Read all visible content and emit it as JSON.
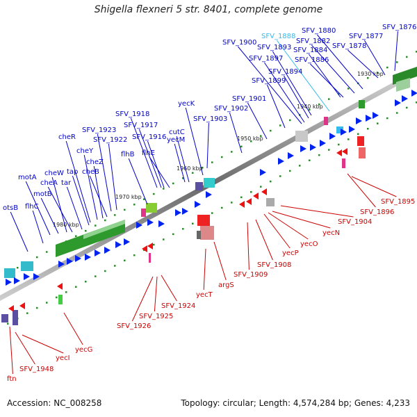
{
  "title": "Shigella flexneri 5 str. 8401, complete genome",
  "footer": {
    "accession": "Accession: NC_008258",
    "summary": "Topology: circular; Length: 4,574,284 bp; Genes: 4,233"
  },
  "colors": {
    "forward_label": "#0000cc",
    "reverse_label": "#cc0000",
    "highlight_label": "#33bbee",
    "backbone": "#888888"
  },
  "ticks": [
    "1930 kbp",
    "1940 kbp",
    "1950 kbp",
    "1960 kbp",
    "1970 kbp",
    "1980 kbp"
  ],
  "forward_genes": [
    "otsB",
    "flhC",
    "motA",
    "motB",
    "cheW",
    "cheA",
    "tar",
    "cheR",
    "tap",
    "cheY",
    "cheZ",
    "cheB",
    "SFV_1923",
    "SFV_1922",
    "SFV_1918",
    "SFV_1917",
    "flhB",
    "SFV_1916",
    "flhE",
    "cutC",
    "yecM",
    "yecK",
    "SFV_1903",
    "SFV_1902",
    "SFV_1901",
    "SFV_1899",
    "SFV_1900",
    "SFV_1897",
    "SFV_1894",
    "SFV_1893",
    "SFV_1888",
    "SFV_1884",
    "SFV_1886",
    "SFV_1882",
    "SFV_1880",
    "SFV_1878",
    "SFV_1877",
    "SFV_1876"
  ],
  "reverse_genes": [
    "ftn",
    "SFV_1948",
    "yecI",
    "yecG",
    "SFV_1926",
    "SFV_1925",
    "SFV_1924",
    "yecT",
    "argS",
    "SFV_1909",
    "SFV_1908",
    "yecP",
    "yecO",
    "yecN",
    "SFV_1904",
    "SFV_1896",
    "SFV_1895"
  ]
}
